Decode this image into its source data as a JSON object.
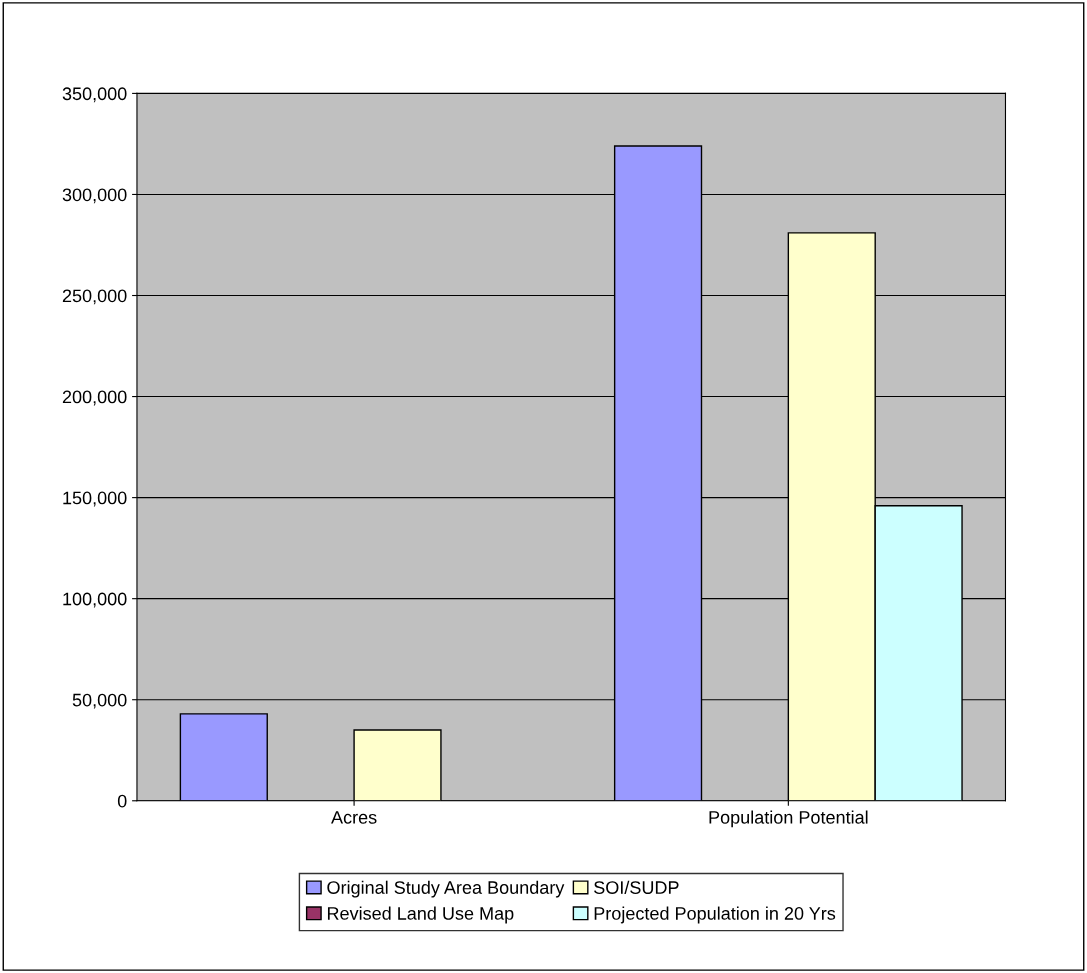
{
  "chart_data": {
    "type": "bar",
    "categories": [
      "Acres",
      "Population Potential"
    ],
    "series": [
      {
        "name": "Original Study Area Boundary",
        "color": "#9999ff",
        "values": [
          43000,
          324000
        ]
      },
      {
        "name": "Revised Land Use Map",
        "color": "#993366",
        "values": [
          null,
          null
        ]
      },
      {
        "name": "SOI/SUDP",
        "color": "#ffffcc",
        "values": [
          35000,
          281000
        ]
      },
      {
        "name": "Projected Population in 20 Yrs",
        "color": "#ccffff",
        "values": [
          null,
          146000
        ]
      }
    ],
    "ylim": [
      0,
      350000
    ],
    "yticks": [
      {
        "value": 0,
        "label": "0"
      },
      {
        "value": 50000,
        "label": "50,000"
      },
      {
        "value": 100000,
        "label": "100,000"
      },
      {
        "value": 150000,
        "label": "150,000"
      },
      {
        "value": 200000,
        "label": "200,000"
      },
      {
        "value": 250000,
        "label": "250,000"
      },
      {
        "value": 300000,
        "label": "300,000"
      },
      {
        "value": 350000,
        "label": "350,000"
      }
    ],
    "grid": "y",
    "legend": "bottom"
  }
}
